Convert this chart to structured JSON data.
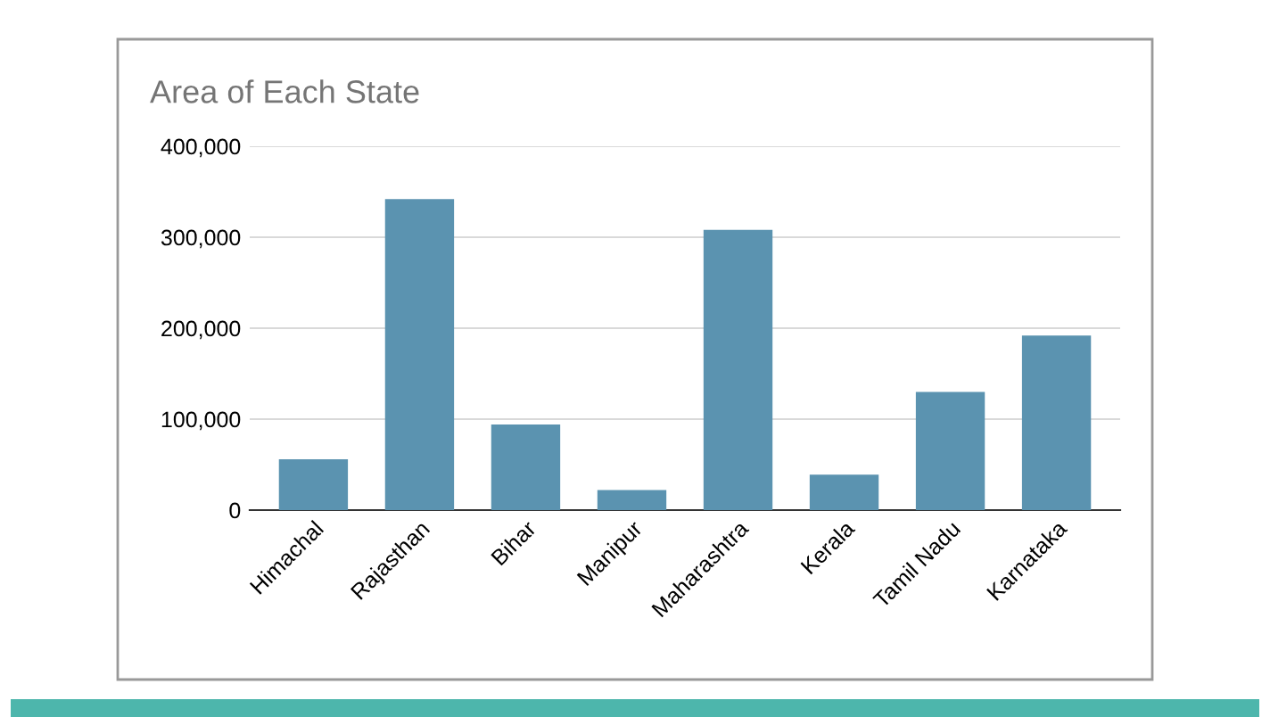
{
  "chart_data": {
    "type": "bar",
    "title": "Area of Each State",
    "categories": [
      "Himachal",
      "Rajasthan",
      "Bihar",
      "Manipur",
      "Maharashtra",
      "Kerala",
      "Tamil Nadu",
      "Karnataka"
    ],
    "values": [
      56000,
      342000,
      94000,
      22000,
      308000,
      39000,
      130000,
      192000
    ],
    "color": "#5b93b0",
    "ylim": [
      0,
      400000
    ],
    "yticks": [
      {
        "value": 0,
        "label": "0"
      },
      {
        "value": 100000,
        "label": "100,000"
      },
      {
        "value": 200000,
        "label": "200,000"
      },
      {
        "value": 300000,
        "label": "300,000"
      },
      {
        "value": 400000,
        "label": "400,000"
      }
    ],
    "grid": "y",
    "legend": false
  }
}
